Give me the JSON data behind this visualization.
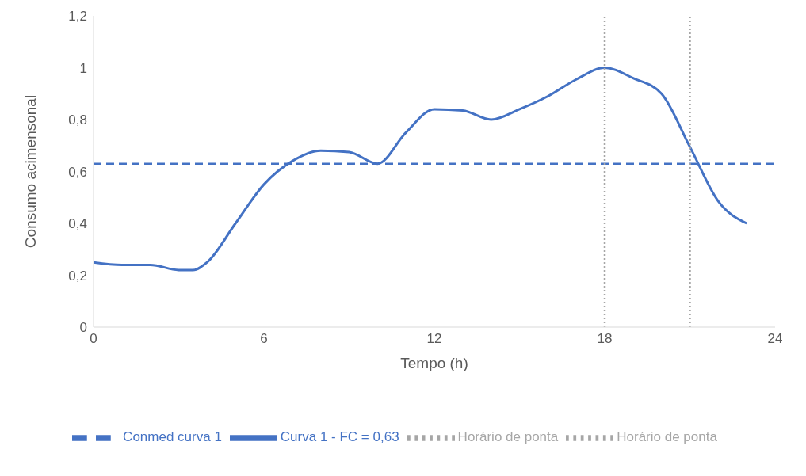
{
  "chart_data": {
    "type": "line",
    "xlabel": "Tempo (h)",
    "ylabel": "Consumo acimensonal",
    "xlim": [
      0,
      24
    ],
    "xticks": [
      0,
      6,
      12,
      18,
      24
    ],
    "ylim": [
      0,
      1.2
    ],
    "yticks": [
      0,
      {
        "value": 0.2,
        "label": "0,2"
      },
      {
        "value": 0.4,
        "label": "0,4"
      },
      {
        "value": 0.6,
        "label": "0,6"
      },
      {
        "value": 0.8,
        "label": "0,8"
      },
      1,
      {
        "value": 1.2,
        "label": "1,2"
      }
    ],
    "grid": false,
    "legend": "bottom",
    "marker": "none",
    "series": [
      {
        "name": "Curva 1 - FC = 0,63",
        "color": "#4472c4",
        "line_style": "solid",
        "x": [
          0,
          1,
          2,
          3,
          3.5,
          4,
          5,
          6,
          7,
          8,
          9,
          10,
          11,
          12,
          13,
          14,
          15,
          16,
          17,
          18,
          19,
          20,
          21,
          22,
          23
        ],
        "values": [
          0.25,
          0.24,
          0.24,
          0.22,
          0.22,
          0.25,
          0.4,
          0.55,
          0.64,
          0.68,
          0.675,
          0.63,
          0.75,
          0.84,
          0.835,
          0.8,
          0.84,
          0.89,
          0.955,
          1.0,
          0.96,
          0.9,
          0.695,
          0.485,
          0.4
        ]
      },
      {
        "name": "Conmed curva 1",
        "color": "#4472c4",
        "line_style": "dashed",
        "x": [
          0,
          24
        ],
        "values": [
          0.63,
          0.63
        ]
      },
      {
        "name": "Horário de ponta",
        "color": "#a6a6a6",
        "line_style": "dotted",
        "x": [
          18,
          18
        ],
        "values": [
          0,
          1.2
        ]
      },
      {
        "name": "Horário de ponta",
        "color": "#a6a6a6",
        "line_style": "dotted",
        "x": [
          21,
          21
        ],
        "values": [
          0,
          1.2
        ]
      }
    ]
  }
}
